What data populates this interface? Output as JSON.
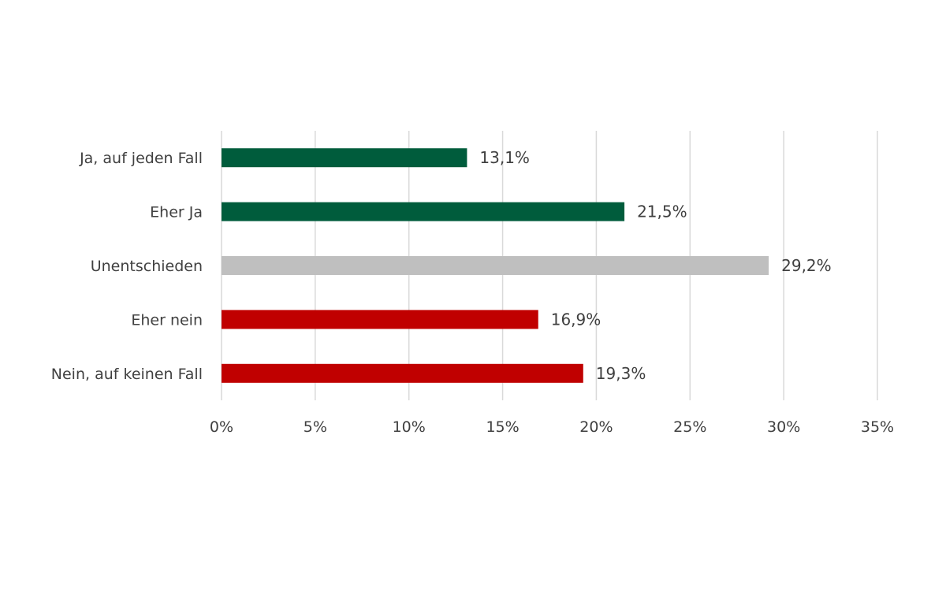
{
  "chart_data": {
    "type": "bar",
    "orientation": "horizontal",
    "categories": [
      "Ja, auf jeden Fall",
      "Eher Ja",
      "Unentschieden",
      "Eher nein",
      "Nein, auf keinen Fall"
    ],
    "values": [
      13.1,
      21.5,
      29.2,
      16.9,
      19.3
    ],
    "value_labels": [
      "13,1%",
      "21,5%",
      "29,2%",
      "16,9%",
      "19,3%"
    ],
    "bar_colors": [
      "#005c3c",
      "#005c3c",
      "#bfbfbf",
      "#c00000",
      "#c00000"
    ],
    "xlim": [
      0,
      35
    ],
    "x_ticks": [
      0,
      5,
      10,
      15,
      20,
      25,
      30,
      35
    ],
    "x_tick_labels": [
      "0%",
      "5%",
      "10%",
      "15%",
      "20%",
      "25%",
      "30%",
      "35%"
    ],
    "grid": "vertical",
    "legend": "none"
  }
}
